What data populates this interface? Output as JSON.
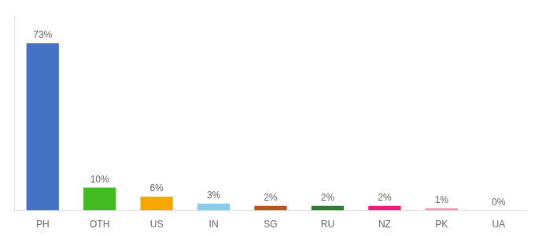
{
  "chart_data": {
    "type": "bar",
    "categories": [
      "PH",
      "OTH",
      "US",
      "IN",
      "SG",
      "RU",
      "NZ",
      "PK",
      "UA"
    ],
    "values": [
      73,
      10,
      6,
      3,
      2,
      2,
      2,
      1,
      0
    ],
    "value_labels": [
      "73%",
      "10%",
      "6%",
      "3%",
      "2%",
      "2%",
      "2%",
      "1%",
      "0%"
    ],
    "colors": [
      "#4472c4",
      "#44bb22",
      "#f5a800",
      "#88ccee",
      "#b05820",
      "#2e7d32",
      "#e91e7a",
      "#f48fb1",
      "#cccccc"
    ],
    "ylim": [
      0,
      85
    ],
    "grid": false,
    "data_labels": true,
    "tick_labels": "x"
  }
}
